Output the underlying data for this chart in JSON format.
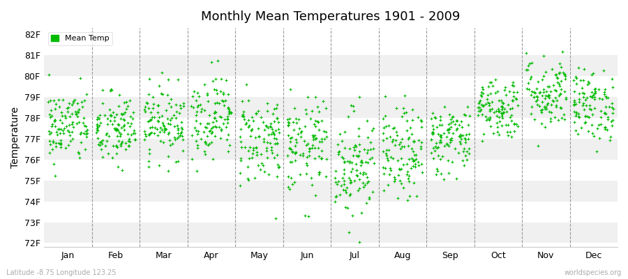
{
  "title": "Monthly Mean Temperatures 1901 - 2009",
  "ylabel": "Temperature",
  "xlabel_months": [
    "Jan",
    "Feb",
    "Mar",
    "Apr",
    "May",
    "Jun",
    "Jul",
    "Aug",
    "Sep",
    "Oct",
    "Nov",
    "Dec"
  ],
  "ytick_labels": [
    "72F",
    "73F",
    "74F",
    "75F",
    "76F",
    "77F",
    "78F",
    "79F",
    "80F",
    "81F",
    "82F"
  ],
  "ytick_values": [
    72,
    73,
    74,
    75,
    76,
    77,
    78,
    79,
    80,
    81,
    82
  ],
  "ylim": [
    71.8,
    82.3
  ],
  "dot_color": "#00bb00",
  "dot_size": 5,
  "legend_label": "Mean Temp",
  "background_color": "#ffffff",
  "plot_bg_color": "#ffffff",
  "band_colors": [
    "#f0f0f0",
    "#ffffff"
  ],
  "footnote_left": "Latitude -8.75 Longitude 123.25",
  "footnote_right": "worldspecies.org",
  "years": 109,
  "seed": 42,
  "monthly_means": [
    77.6,
    77.4,
    77.8,
    78.1,
    77.0,
    76.6,
    75.8,
    76.2,
    77.0,
    78.5,
    79.2,
    78.6
  ],
  "monthly_stds": [
    0.9,
    0.9,
    0.85,
    1.0,
    1.1,
    1.15,
    1.3,
    1.1,
    0.85,
    0.75,
    0.9,
    0.85
  ]
}
